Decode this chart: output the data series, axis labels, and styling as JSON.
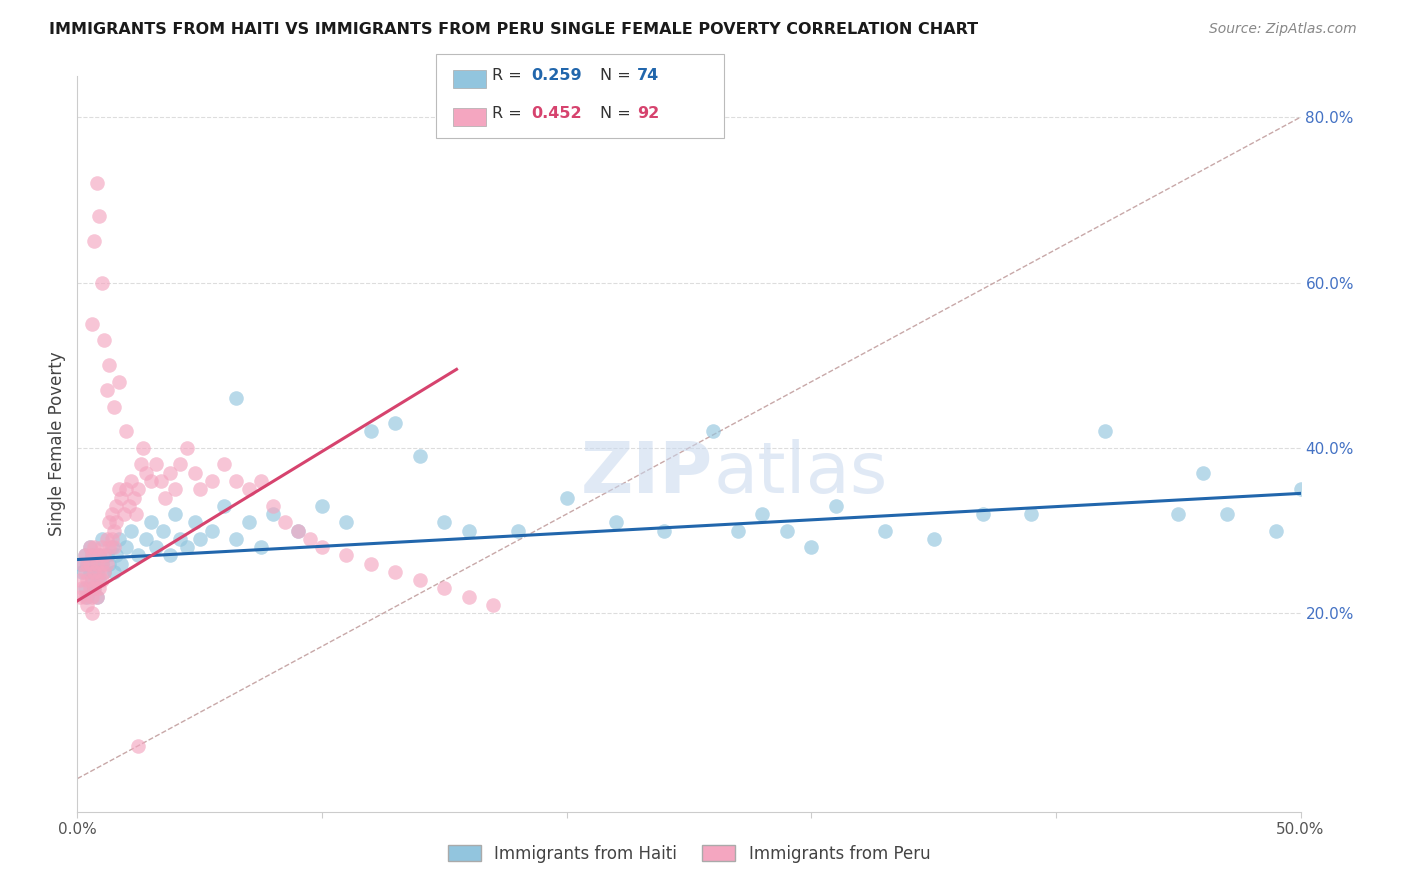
{
  "title": "IMMIGRANTS FROM HAITI VS IMMIGRANTS FROM PERU SINGLE FEMALE POVERTY CORRELATION CHART",
  "source": "Source: ZipAtlas.com",
  "ylabel_label": "Single Female Poverty",
  "haiti_R": 0.259,
  "haiti_N": 74,
  "peru_R": 0.452,
  "peru_N": 92,
  "haiti_color": "#92c5de",
  "peru_color": "#f4a6c0",
  "haiti_line_color": "#2166ac",
  "peru_line_color": "#d6436e",
  "diagonal_color": "#c8a8a8",
  "background_color": "#ffffff",
  "xlim": [
    0.0,
    0.5
  ],
  "ylim": [
    -0.04,
    0.85
  ],
  "haiti_x": [
    0.001,
    0.002,
    0.003,
    0.003,
    0.004,
    0.004,
    0.005,
    0.005,
    0.006,
    0.006,
    0.007,
    0.007,
    0.008,
    0.008,
    0.009,
    0.009,
    0.01,
    0.01,
    0.011,
    0.012,
    0.013,
    0.014,
    0.015,
    0.016,
    0.017,
    0.018,
    0.02,
    0.022,
    0.025,
    0.028,
    0.03,
    0.032,
    0.035,
    0.038,
    0.04,
    0.042,
    0.045,
    0.048,
    0.05,
    0.055,
    0.06,
    0.065,
    0.07,
    0.075,
    0.08,
    0.09,
    0.1,
    0.11,
    0.12,
    0.13,
    0.14,
    0.15,
    0.16,
    0.18,
    0.2,
    0.22,
    0.24,
    0.26,
    0.27,
    0.28,
    0.29,
    0.3,
    0.31,
    0.33,
    0.35,
    0.37,
    0.39,
    0.42,
    0.45,
    0.46,
    0.47,
    0.49,
    0.5,
    0.065
  ],
  "haiti_y": [
    0.26,
    0.25,
    0.27,
    0.23,
    0.26,
    0.22,
    0.25,
    0.28,
    0.24,
    0.27,
    0.26,
    0.23,
    0.25,
    0.22,
    0.24,
    0.27,
    0.26,
    0.29,
    0.25,
    0.27,
    0.26,
    0.28,
    0.25,
    0.27,
    0.29,
    0.26,
    0.28,
    0.3,
    0.27,
    0.29,
    0.31,
    0.28,
    0.3,
    0.27,
    0.32,
    0.29,
    0.28,
    0.31,
    0.29,
    0.3,
    0.33,
    0.29,
    0.31,
    0.28,
    0.32,
    0.3,
    0.33,
    0.31,
    0.42,
    0.43,
    0.39,
    0.31,
    0.3,
    0.3,
    0.34,
    0.31,
    0.3,
    0.42,
    0.3,
    0.32,
    0.3,
    0.28,
    0.33,
    0.3,
    0.29,
    0.32,
    0.32,
    0.42,
    0.32,
    0.37,
    0.32,
    0.3,
    0.35,
    0.46
  ],
  "peru_x": [
    0.001,
    0.001,
    0.002,
    0.002,
    0.003,
    0.003,
    0.003,
    0.004,
    0.004,
    0.004,
    0.005,
    0.005,
    0.005,
    0.006,
    0.006,
    0.006,
    0.006,
    0.007,
    0.007,
    0.007,
    0.008,
    0.008,
    0.008,
    0.009,
    0.009,
    0.009,
    0.01,
    0.01,
    0.01,
    0.011,
    0.011,
    0.012,
    0.012,
    0.013,
    0.013,
    0.014,
    0.014,
    0.015,
    0.015,
    0.016,
    0.016,
    0.017,
    0.018,
    0.019,
    0.02,
    0.021,
    0.022,
    0.023,
    0.024,
    0.025,
    0.026,
    0.027,
    0.028,
    0.03,
    0.032,
    0.034,
    0.036,
    0.038,
    0.04,
    0.042,
    0.045,
    0.048,
    0.05,
    0.055,
    0.06,
    0.065,
    0.07,
    0.075,
    0.08,
    0.085,
    0.09,
    0.095,
    0.1,
    0.11,
    0.12,
    0.13,
    0.14,
    0.15,
    0.16,
    0.17,
    0.006,
    0.007,
    0.008,
    0.009,
    0.01,
    0.011,
    0.012,
    0.013,
    0.015,
    0.017,
    0.02,
    0.025
  ],
  "peru_y": [
    0.24,
    0.22,
    0.23,
    0.26,
    0.22,
    0.25,
    0.27,
    0.24,
    0.26,
    0.21,
    0.23,
    0.26,
    0.28,
    0.24,
    0.27,
    0.22,
    0.2,
    0.25,
    0.28,
    0.23,
    0.26,
    0.24,
    0.22,
    0.25,
    0.27,
    0.23,
    0.26,
    0.28,
    0.24,
    0.27,
    0.25,
    0.29,
    0.26,
    0.28,
    0.31,
    0.29,
    0.32,
    0.3,
    0.28,
    0.33,
    0.31,
    0.35,
    0.34,
    0.32,
    0.35,
    0.33,
    0.36,
    0.34,
    0.32,
    0.35,
    0.38,
    0.4,
    0.37,
    0.36,
    0.38,
    0.36,
    0.34,
    0.37,
    0.35,
    0.38,
    0.4,
    0.37,
    0.35,
    0.36,
    0.38,
    0.36,
    0.35,
    0.36,
    0.33,
    0.31,
    0.3,
    0.29,
    0.28,
    0.27,
    0.26,
    0.25,
    0.24,
    0.23,
    0.22,
    0.21,
    0.55,
    0.65,
    0.72,
    0.68,
    0.6,
    0.53,
    0.47,
    0.5,
    0.45,
    0.48,
    0.42,
    0.04
  ]
}
